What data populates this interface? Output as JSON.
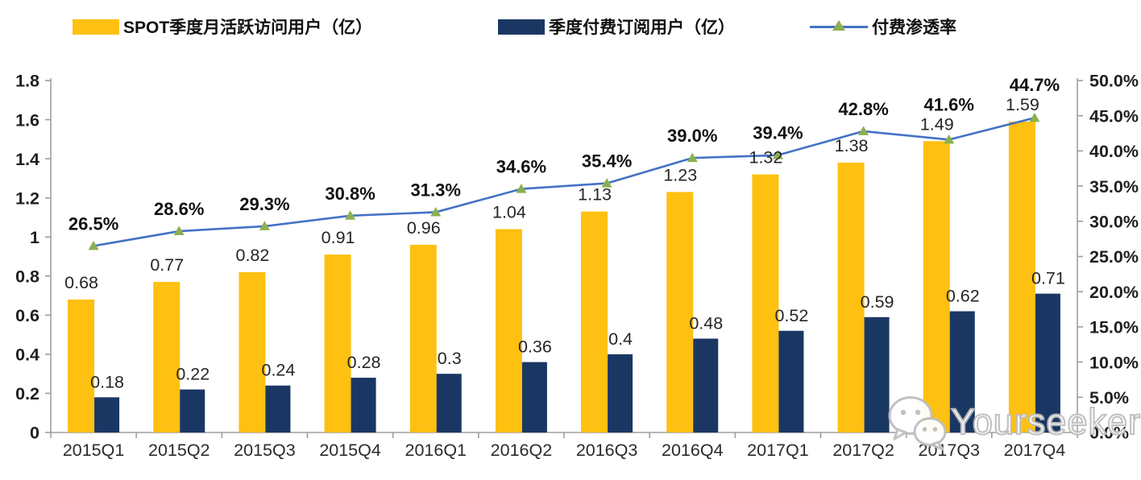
{
  "legend": [
    {
      "label": "SPOT季度月活跃访问用户（亿）",
      "swatch": "yellow-bar-swatch"
    },
    {
      "label": "季度付费订阅用户（亿）",
      "swatch": "navy-bar-swatch"
    },
    {
      "label": "付费渗透率",
      "swatch": "line-triangle-sample"
    }
  ],
  "colors": {
    "mau_bar": "#FEC011",
    "sub_bar": "#1A3763",
    "rate_line": "#4472C4",
    "rate_marker": "#8CB04F",
    "axis": "#9E9E9E",
    "text": "#1F1F1F",
    "watermark": "#BFBFBF"
  },
  "watermark": {
    "text": "Yourseeker",
    "icon": "wechat-icon"
  },
  "chart_data": {
    "type": "bar+line",
    "categories": [
      "2015Q1",
      "2015Q2",
      "2015Q3",
      "2015Q4",
      "2016Q1",
      "2016Q2",
      "2016Q3",
      "2016Q4",
      "2017Q1",
      "2017Q2",
      "2017Q3",
      "2017Q4"
    ],
    "series": [
      {
        "name": "SPOT季度月活跃访问用户（亿）",
        "type": "bar",
        "axis": "left",
        "color_key": "mau_bar",
        "values": [
          0.68,
          0.77,
          0.82,
          0.91,
          0.96,
          1.04,
          1.13,
          1.23,
          1.32,
          1.38,
          1.49,
          1.59
        ],
        "labels": [
          "0.68",
          "0.77",
          "0.82",
          "0.91",
          "0.96",
          "1.04",
          "1.13",
          "1.23",
          "1.32",
          "1.38",
          "1.49",
          "1.59"
        ]
      },
      {
        "name": "季度付费订阅用户（亿）",
        "type": "bar",
        "axis": "left",
        "color_key": "sub_bar",
        "values": [
          0.18,
          0.22,
          0.24,
          0.28,
          0.3,
          0.36,
          0.4,
          0.48,
          0.52,
          0.59,
          0.62,
          0.71
        ],
        "labels": [
          "0.18",
          "0.22",
          "0.24",
          "0.28",
          "0.3",
          "0.36",
          "0.4",
          "0.48",
          "0.52",
          "0.59",
          "0.62",
          "0.71"
        ]
      },
      {
        "name": "付费渗透率",
        "type": "line",
        "axis": "right",
        "color_key": "rate_line",
        "marker": "triangle",
        "marker_color_key": "rate_marker",
        "values": [
          26.5,
          28.6,
          29.3,
          30.8,
          31.3,
          34.6,
          35.4,
          39.0,
          39.4,
          42.8,
          41.6,
          44.7
        ],
        "labels": [
          "26.5%",
          "28.6%",
          "29.3%",
          "30.8%",
          "31.3%",
          "34.6%",
          "35.4%",
          "39.0%",
          "39.4%",
          "42.8%",
          "41.6%",
          "44.7%"
        ]
      }
    ],
    "left_axis": {
      "min": 0,
      "max": 1.8,
      "step": 0.2,
      "ticks": [
        "0",
        "0.2",
        "0.4",
        "0.6",
        "0.8",
        "1",
        "1.2",
        "1.4",
        "1.6",
        "1.8"
      ]
    },
    "right_axis": {
      "min": 0,
      "max": 50,
      "step": 5,
      "ticks": [
        "0.0%",
        "5.0%",
        "10.0%",
        "15.0%",
        "20.0%",
        "25.0%",
        "30.0%",
        "35.0%",
        "40.0%",
        "45.0%",
        "50.0%"
      ]
    },
    "grid": false,
    "legend_position": "top",
    "title": ""
  }
}
